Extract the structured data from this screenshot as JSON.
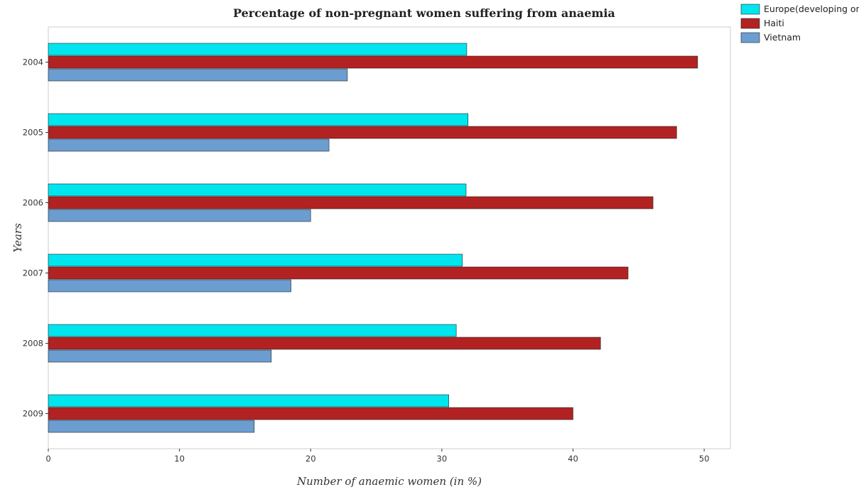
{
  "chart_data": {
    "type": "bar",
    "orientation": "horizontal",
    "title": "Percentage of non-pregnant women suffering from anaemia",
    "xlabel": "Number of anaemic women (in %)",
    "ylabel": "Years",
    "categories": [
      "2004",
      "2005",
      "2006",
      "2007",
      "2008",
      "2009"
    ],
    "xlim": [
      0,
      52
    ],
    "xticks": [
      0,
      10,
      20,
      30,
      40,
      50
    ],
    "grid": false,
    "legend_position": "top-right",
    "series": [
      {
        "name": "Europe(developing only)",
        "color": "#00e5ee",
        "values": [
          31.9,
          32.0,
          31.85,
          31.57,
          31.1,
          30.53
        ]
      },
      {
        "name": "Haiti",
        "color": "#b22222",
        "values": [
          49.5,
          47.9,
          46.1,
          44.2,
          42.1,
          40.0
        ]
      },
      {
        "name": "Vietnam",
        "color": "#6b9dd1",
        "values": [
          22.8,
          21.4,
          20.0,
          18.5,
          17.0,
          15.7
        ]
      }
    ]
  }
}
